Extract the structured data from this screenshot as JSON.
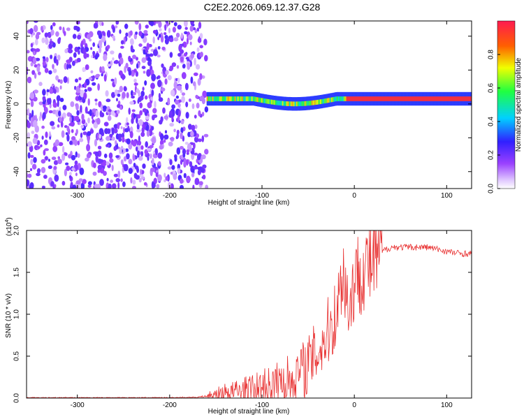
{
  "window_title": "C2E2.2026.069.12.37.G28",
  "chart_data": [
    {
      "type": "heatmap",
      "title": "C2E2.2026.069.12.37.G28",
      "xlabel": "Height of straight line (km)",
      "ylabel": "Frequency (Hz)",
      "xlim": [
        -355,
        127
      ],
      "ylim": [
        -50,
        49
      ],
      "xticks": [
        -300,
        -200,
        -100,
        0,
        100
      ],
      "yticks": [
        -40,
        -20,
        0,
        20,
        40
      ],
      "colorbar": {
        "label": "Normalized spectral amplitude",
        "range": [
          0,
          1
        ],
        "ticks": [
          0.0,
          0.2,
          0.4,
          0.6,
          0.8
        ]
      },
      "regions": [
        {
          "name": "noise",
          "x_range": [
            -355,
            -160
          ],
          "freq_range": [
            -50,
            49
          ],
          "amplitude": 0.15
        },
        {
          "name": "signal-band",
          "x_range": [
            -160,
            127
          ],
          "freq_center": 3,
          "freq_halfwidth": 4,
          "amplitude_peak": 0.95
        }
      ]
    },
    {
      "type": "line",
      "xlabel": "Height of straight line (km)",
      "ylabel": "SNR (10 * v/v)",
      "y_multiplier": "(x10",
      "y_multiplier_exp": "4",
      "xlim": [
        -355,
        127
      ],
      "ylim": [
        0,
        2.0
      ],
      "xticks": [
        -300,
        -200,
        -100,
        0,
        100
      ],
      "yticks": [
        0.0,
        0.5,
        1.0,
        1.5,
        2.0
      ],
      "color": "#e83030",
      "series": [
        {
          "name": "SNR",
          "x": [
            -355,
            -300,
            -250,
            -200,
            -170,
            -155,
            -140,
            -120,
            -100,
            -80,
            -60,
            -50,
            -40,
            -30,
            -20,
            -15,
            -12,
            -10,
            -5,
            0,
            5,
            10,
            20,
            30,
            40,
            60,
            80,
            100,
            110,
            127
          ],
          "y": [
            0.0,
            0.0,
            0.0,
            0.0,
            0.01,
            0.03,
            0.07,
            0.08,
            0.12,
            0.18,
            0.3,
            0.4,
            0.55,
            0.75,
            1.0,
            1.3,
            1.6,
            1.3,
            1.1,
            1.4,
            1.5,
            1.55,
            1.62,
            1.75,
            1.8,
            1.8,
            1.8,
            1.75,
            1.73,
            1.72
          ]
        }
      ]
    }
  ]
}
